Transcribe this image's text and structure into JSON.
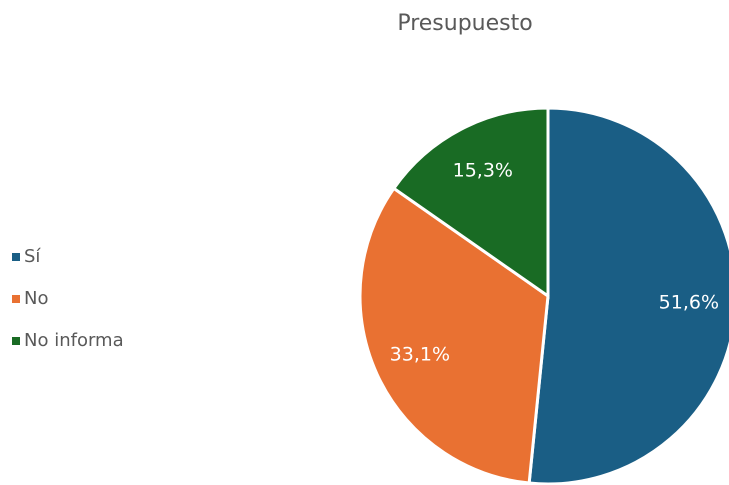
{
  "chart_data": {
    "type": "pie",
    "title": "Presupuesto",
    "categories": [
      "Sí",
      "No",
      "No informa"
    ],
    "values": [
      51.6,
      33.1,
      15.3
    ],
    "value_labels": [
      "51,6%",
      "33,1%",
      "15,3%"
    ],
    "colors": [
      "#1a5e85",
      "#e97132",
      "#196b24"
    ],
    "legend": "left"
  }
}
